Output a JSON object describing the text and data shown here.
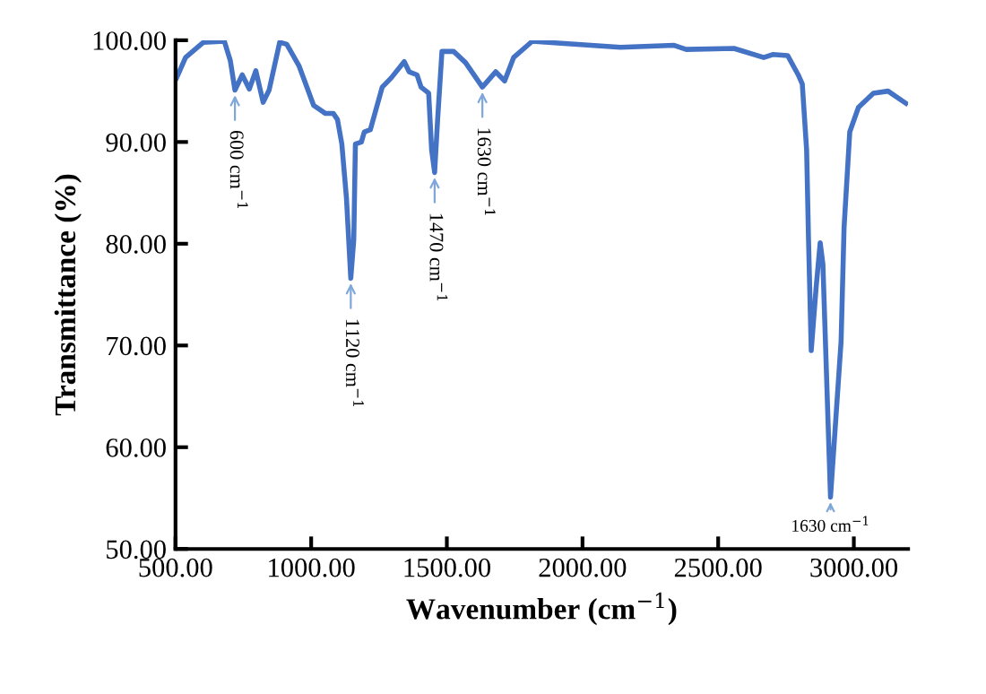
{
  "chart_data": {
    "type": "line",
    "xlabel": "Wavenumber (cm$^{−1}$)",
    "ylabel": "Transmittance (%)",
    "x": [
      504,
      537,
      603,
      680,
      702,
      719,
      746,
      772,
      796,
      823,
      845,
      884,
      910,
      955,
      1009,
      1053,
      1082,
      1097,
      1113,
      1130,
      1146,
      1157,
      1163,
      1185,
      1196,
      1218,
      1262,
      1295,
      1343,
      1361,
      1390,
      1405,
      1433,
      1444,
      1455,
      1466,
      1482,
      1525,
      1569,
      1631,
      1680,
      1713,
      1746,
      1815,
      1921,
      2140,
      2338,
      2382,
      2558,
      2668,
      2701,
      2756,
      2795,
      2810,
      2826,
      2833,
      2843,
      2861,
      2876,
      2886,
      2914,
      2953,
      2964,
      2985,
      3017,
      3072,
      3126,
      3192
    ],
    "series": [
      {
        "color": "#4472c4",
        "values": [
          96.3,
          98.3,
          99.8,
          99.9,
          98,
          95.1,
          96.6,
          95.2,
          97,
          93.9,
          95.1,
          99.8,
          99.6,
          97.5,
          93.6,
          92.8,
          92.8,
          92.2,
          89.8,
          84.5,
          76.6,
          80.4,
          89.8,
          90,
          91,
          91.2,
          95.4,
          96.3,
          97.9,
          96.9,
          96.6,
          95.4,
          94.8,
          89.2,
          87,
          92.2,
          98.9,
          98.9,
          97.8,
          95.4,
          96.9,
          96,
          98.3,
          99.9,
          99.7,
          99.3,
          99.5,
          99.1,
          99.2,
          98.3,
          98.6,
          98.5,
          96.6,
          95.7,
          89.2,
          80.4,
          69.5,
          75.7,
          80.1,
          78,
          55.1,
          70.4,
          81.6,
          91,
          93.4,
          94.8,
          95,
          93.8
        ]
      }
    ],
    "xlim": [
      500,
      3200
    ],
    "ylim": [
      50,
      100
    ],
    "xticks": [
      {
        "value": 500,
        "label": "500.00"
      },
      {
        "value": 1000,
        "label": "1000.00"
      },
      {
        "value": 1500,
        "label": "1500.00"
      },
      {
        "value": 2000,
        "label": "2000.00"
      },
      {
        "value": 2500,
        "label": "2500.00"
      },
      {
        "value": 3000,
        "label": "3000.00"
      }
    ],
    "yticks": [
      {
        "value": 50,
        "label": "50.00"
      },
      {
        "value": 60,
        "label": "60.00"
      },
      {
        "value": 70,
        "label": "70.00"
      },
      {
        "value": 80,
        "label": "80.00"
      },
      {
        "value": 90,
        "label": "90.00"
      },
      {
        "value": 100,
        "label": "100.00"
      }
    ],
    "grid": false,
    "legend": false,
    "marker": "none",
    "line_style": "solid",
    "annotations": [
      {
        "text": "600 cm$^{−1}$",
        "x": 719,
        "y": 95.1
      },
      {
        "text": "1120 cm$^{−1}$",
        "x": 1146,
        "y": 76.6
      },
      {
        "text": "1470 cm$^{−1}$",
        "x": 1455,
        "y": 87
      },
      {
        "text": "1630 cm$^{−1}$",
        "x": 1631,
        "y": 95.4
      },
      {
        "text": "1630 cm$^{−1}$",
        "x": 2914,
        "y": 55.1
      }
    ]
  }
}
